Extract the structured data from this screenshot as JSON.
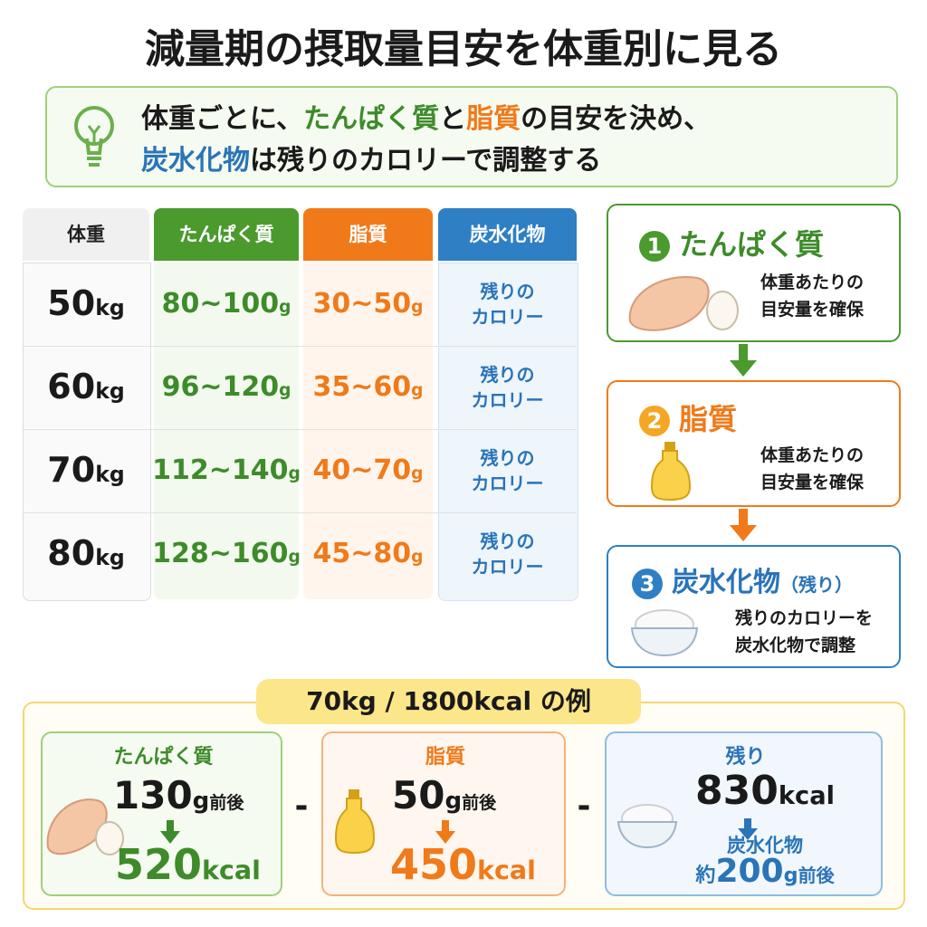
{
  "title": "減量期の摂取量目安を体重別に見る",
  "summary": {
    "lines": [
      [
        {
          "text": "体重ごとに、"
        },
        {
          "text": "たんぱく質",
          "color": "#3d8b2a"
        },
        {
          "text": "と"
        },
        {
          "text": "脂質",
          "color": "#f07a1a"
        },
        {
          "text": "の目安を決め、"
        }
      ],
      [
        {
          "text": "炭水化物",
          "color": "#2a74b8"
        },
        {
          "text": "は残りのカロリーで調整する"
        }
      ]
    ]
  },
  "table": {
    "headers": [
      "体重",
      "たんぱく質",
      "脂質",
      "炭水化物"
    ],
    "rows": [
      {
        "weight": {
          "value": "50",
          "unit": "kg"
        },
        "protein": {
          "value": "80~100",
          "unit": "g"
        },
        "fat": {
          "value": "30~50",
          "unit": "g"
        },
        "carbs": [
          "残りの",
          "カロリー"
        ]
      },
      {
        "weight": {
          "value": "60",
          "unit": "kg"
        },
        "protein": {
          "value": "96~120",
          "unit": "g"
        },
        "fat": {
          "value": "35~60",
          "unit": "g"
        },
        "carbs": [
          "残りの",
          "カロリー"
        ]
      },
      {
        "weight": {
          "value": "70",
          "unit": "kg"
        },
        "protein": {
          "value": "112~140",
          "unit": "g"
        },
        "fat": {
          "value": "40~70",
          "unit": "g"
        },
        "carbs": [
          "残りの",
          "カロリー"
        ]
      },
      {
        "weight": {
          "value": "80",
          "unit": "kg"
        },
        "protein": {
          "value": "128~160",
          "unit": "g"
        },
        "fat": {
          "value": "45~80",
          "unit": "g"
        },
        "carbs": [
          "残りの",
          "カロリー"
        ]
      }
    ]
  },
  "steps": [
    {
      "number": "1",
      "title": "たんぱく質",
      "note": [
        "体重あたりの",
        "目安量を確保"
      ]
    },
    {
      "number": "2",
      "title": "脂質",
      "note": [
        "体重あたりの",
        "目安量を確保"
      ]
    },
    {
      "number": "3",
      "title": "炭水化物",
      "title_suffix": "（残り）",
      "note": [
        "残りのカロリーを",
        "炭水化物で調整"
      ]
    }
  ],
  "example": {
    "label": "70kg / 1800kcal の例",
    "operators": [
      "-",
      "-"
    ],
    "cards": [
      {
        "title": "たんぱく質",
        "amount": {
          "value": "130",
          "unit": "g",
          "suffix": "前後"
        },
        "result": {
          "value": "520",
          "unit": "kcal"
        }
      },
      {
        "title": "脂質",
        "amount": {
          "value": "50",
          "unit": "g",
          "suffix": "前後"
        },
        "result": {
          "value": "450",
          "unit": "kcal"
        }
      },
      {
        "title": "残り",
        "amount": {
          "value": "830",
          "unit": "kcal"
        },
        "result_title": "炭水化物",
        "result": {
          "prefix": "約",
          "value": "200",
          "unit": "g",
          "suffix": "前後"
        }
      }
    ]
  }
}
